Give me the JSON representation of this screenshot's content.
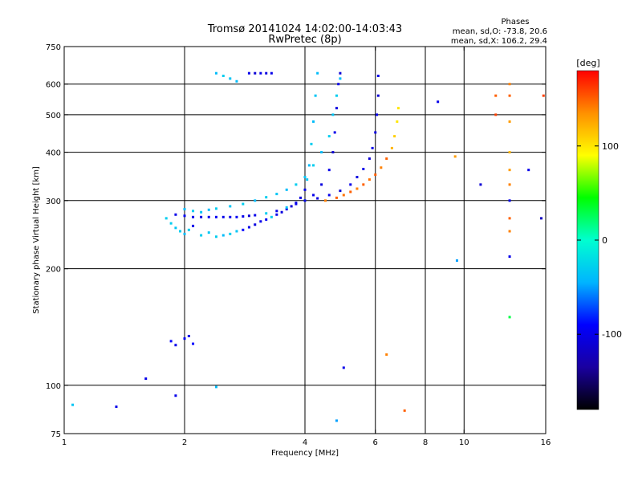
{
  "chart_data": {
    "type": "scatter",
    "title": "Tromsø 20141024 14:02:00-14:03:43",
    "subtitle": "RwPretec (8p)",
    "info": {
      "heading": "Phases",
      "line_o": "mean, sd,O: -73.8, 20.6",
      "line_x": "mean, sd,X: 106.2, 29.4"
    },
    "xlabel": "Frequency [MHz]",
    "ylabel": "Stationary phase Virtual Height [km]",
    "xscale": "log",
    "yscale": "log",
    "xlim": [
      1,
      16
    ],
    "ylim": [
      75,
      750
    ],
    "xticks": [
      1,
      2,
      4,
      6,
      8,
      10,
      16
    ],
    "yticks": [
      75,
      100,
      200,
      300,
      400,
      500,
      600,
      750
    ],
    "grid_x": [
      2,
      4,
      6,
      8,
      10
    ],
    "grid_y": [
      100,
      200,
      300,
      400,
      500,
      600
    ],
    "grid": true,
    "colorbar": {
      "label": "[deg]",
      "min": -180,
      "max": 180,
      "ticks": [
        100,
        0,
        -100
      ],
      "colormap": [
        "#000000",
        "#1a00a0",
        "#0000ff",
        "#00b4ff",
        "#00ffd0",
        "#00ff00",
        "#ffff00",
        "#ff9000",
        "#ff0000"
      ]
    },
    "series": [
      {
        "points": [
          [
            1.8,
            270,
            -30
          ],
          [
            1.85,
            262,
            -30
          ],
          [
            1.9,
            255,
            -35
          ],
          [
            1.95,
            250,
            -30
          ],
          [
            2.0,
            246,
            -40
          ],
          [
            2.05,
            252,
            -30
          ],
          [
            2.1,
            258,
            -100
          ],
          [
            2.2,
            244,
            -30
          ],
          [
            2.3,
            248,
            -35
          ],
          [
            2.4,
            242,
            -30
          ],
          [
            2.5,
            244,
            -40
          ],
          [
            2.6,
            246,
            -30
          ],
          [
            2.7,
            250,
            -35
          ],
          [
            2.8,
            252,
            -90
          ],
          [
            2.9,
            256,
            -100
          ],
          [
            3.0,
            260,
            -105
          ],
          [
            3.1,
            265,
            -100
          ],
          [
            3.2,
            268,
            -95
          ],
          [
            3.3,
            272,
            -30
          ],
          [
            3.4,
            276,
            -100
          ],
          [
            3.5,
            280,
            -105
          ],
          [
            3.6,
            285,
            -100
          ],
          [
            3.7,
            290,
            -110
          ],
          [
            3.8,
            296,
            -100
          ],
          [
            3.9,
            305,
            -105
          ],
          [
            4.0,
            320,
            -100
          ],
          [
            4.05,
            340,
            -35
          ],
          [
            4.1,
            370,
            -40
          ],
          [
            4.15,
            420,
            -30
          ],
          [
            4.2,
            480,
            -40
          ],
          [
            4.25,
            560,
            -35
          ],
          [
            4.3,
            640,
            -40
          ]
        ]
      },
      {
        "points": [
          [
            1.9,
            276,
            -100
          ],
          [
            2.0,
            274,
            -95
          ],
          [
            2.1,
            272,
            -100
          ],
          [
            2.2,
            272,
            -105
          ],
          [
            2.3,
            272,
            -100
          ],
          [
            2.4,
            272,
            -95
          ],
          [
            2.5,
            272,
            -100
          ],
          [
            2.6,
            272,
            -100
          ],
          [
            2.7,
            272,
            -95
          ],
          [
            2.8,
            273,
            -100
          ],
          [
            2.9,
            274,
            -110
          ],
          [
            3.0,
            275,
            -100
          ],
          [
            3.2,
            278,
            -30
          ],
          [
            3.4,
            282,
            -100
          ],
          [
            3.6,
            288,
            -35
          ],
          [
            3.8,
            294,
            -100
          ],
          [
            4.0,
            300,
            -30
          ],
          [
            4.2,
            310,
            -100
          ],
          [
            4.4,
            330,
            -105
          ],
          [
            4.6,
            360,
            -100
          ],
          [
            4.7,
            400,
            -110
          ],
          [
            4.75,
            450,
            -100
          ],
          [
            4.8,
            520,
            -105
          ],
          [
            4.85,
            600,
            -100
          ],
          [
            4.9,
            640,
            -110
          ]
        ]
      },
      {
        "points": [
          [
            2.0,
            285,
            -40
          ],
          [
            2.1,
            282,
            -30
          ],
          [
            2.2,
            280,
            -35
          ],
          [
            2.3,
            284,
            -40
          ],
          [
            2.4,
            286,
            -30
          ],
          [
            2.6,
            290,
            -35
          ],
          [
            2.8,
            294,
            -30
          ],
          [
            3.0,
            300,
            -40
          ],
          [
            3.2,
            306,
            -30
          ],
          [
            3.4,
            312,
            -35
          ],
          [
            3.6,
            320,
            -40
          ],
          [
            3.8,
            330,
            -30
          ],
          [
            4.0,
            345,
            -35
          ],
          [
            4.2,
            370,
            -30
          ],
          [
            4.4,
            400,
            -40
          ],
          [
            4.6,
            440,
            -30
          ],
          [
            4.7,
            500,
            -35
          ],
          [
            4.8,
            560,
            -30
          ],
          [
            4.9,
            620,
            -40
          ]
        ]
      },
      {
        "points": [
          [
            4.0,
            300,
            -100
          ],
          [
            4.3,
            304,
            -105
          ],
          [
            4.6,
            310,
            -100
          ],
          [
            4.9,
            318,
            -110
          ],
          [
            5.2,
            330,
            -100
          ],
          [
            5.4,
            345,
            -105
          ],
          [
            5.6,
            362,
            -100
          ],
          [
            5.8,
            385,
            -110
          ],
          [
            5.9,
            410,
            -100
          ],
          [
            6.0,
            450,
            -105
          ],
          [
            6.05,
            500,
            -100
          ],
          [
            6.1,
            560,
            -110
          ],
          [
            6.1,
            630,
            -100
          ]
        ]
      },
      {
        "points": [
          [
            4.5,
            300,
            140
          ],
          [
            4.8,
            305,
            150
          ],
          [
            5.0,
            310,
            145
          ],
          [
            5.2,
            316,
            150
          ],
          [
            5.4,
            322,
            140
          ],
          [
            5.6,
            330,
            150
          ],
          [
            5.8,
            340,
            145
          ],
          [
            6.0,
            350,
            150
          ],
          [
            6.2,
            365,
            140
          ],
          [
            6.4,
            385,
            150
          ],
          [
            6.6,
            410,
            120
          ],
          [
            6.7,
            440,
            110
          ],
          [
            6.8,
            480,
            100
          ],
          [
            6.85,
            520,
            100
          ]
        ]
      },
      {
        "points": [
          [
            2.9,
            640,
            -100
          ],
          [
            3.0,
            640,
            -110
          ],
          [
            3.1,
            640,
            -100
          ],
          [
            3.2,
            640,
            -105
          ],
          [
            3.3,
            640,
            -100
          ],
          [
            2.4,
            640,
            -40
          ],
          [
            2.5,
            630,
            -30
          ],
          [
            2.6,
            620,
            -35
          ],
          [
            2.7,
            610,
            -40
          ]
        ]
      },
      {
        "points": [
          [
            1.85,
            130,
            -90
          ],
          [
            1.9,
            127,
            -100
          ],
          [
            2.0,
            132,
            -95
          ],
          [
            2.05,
            134,
            -100
          ],
          [
            2.1,
            128,
            -90
          ],
          [
            1.6,
            104,
            -100
          ],
          [
            1.9,
            94,
            -100
          ],
          [
            2.4,
            99,
            -40
          ],
          [
            1.05,
            89,
            -35
          ],
          [
            1.35,
            88,
            -100
          ],
          [
            5.0,
            111,
            -100
          ],
          [
            4.8,
            81,
            -50
          ],
          [
            7.1,
            86,
            150
          ],
          [
            6.4,
            120,
            140
          ]
        ]
      },
      {
        "points": [
          [
            13,
            600,
            140
          ],
          [
            13,
            560,
            150
          ],
          [
            13,
            480,
            130
          ],
          [
            13,
            400,
            120
          ],
          [
            13,
            360,
            130
          ],
          [
            13,
            330,
            140
          ],
          [
            13,
            300,
            -100
          ],
          [
            13,
            270,
            150
          ],
          [
            13,
            250,
            140
          ],
          [
            13,
            215,
            -100
          ],
          [
            13,
            150,
            30
          ],
          [
            12,
            560,
            150
          ],
          [
            12,
            500,
            160
          ],
          [
            14.5,
            360,
            -100
          ],
          [
            15.6,
            270,
            -120
          ],
          [
            15.8,
            560,
            160
          ],
          [
            9.5,
            390,
            130
          ],
          [
            9.6,
            210,
            -50
          ],
          [
            8.6,
            540,
            -100
          ],
          [
            11,
            330,
            -110
          ]
        ]
      }
    ]
  }
}
